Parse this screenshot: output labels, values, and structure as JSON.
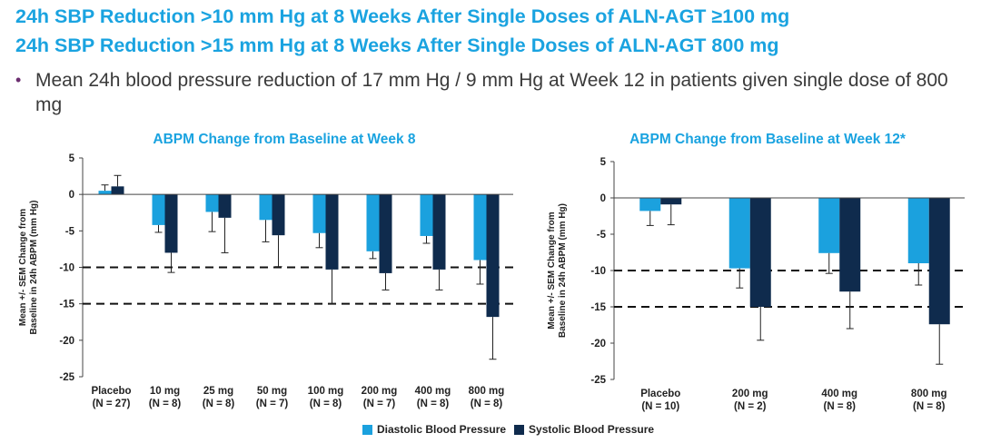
{
  "slide": {
    "headline1": "24h SBP Reduction >10 mm Hg at 8 Weeks After Single Doses of ALN-AGT ≥100 mg",
    "headline2": "24h SBP Reduction >15 mm Hg at 8 Weeks After Single Doses of ALN-AGT 800 mg",
    "bullet": "Mean 24h blood pressure reduction of 17 mm Hg / 9 mm Hg at Week 12 in patients given single dose of 800 mg"
  },
  "colors": {
    "diastolic": "#1ba1de",
    "systolic": "#0f2b4d",
    "title": "#1aa3e0",
    "bullet": "#6b2d6f"
  },
  "legend": {
    "diastolic": "Diastolic Blood Pressure",
    "systolic": "Systolic Blood Pressure"
  },
  "chart_data": [
    {
      "type": "bar",
      "title": "ABPM Change from Baseline at Week 8",
      "ylabel_line1": "Mean +/- SEM Change from",
      "ylabel_line2": "Baseline in 24h ABPM (mm Hg)",
      "ylim": [
        -25,
        5
      ],
      "yticks": [
        5,
        0,
        -5,
        -10,
        -15,
        -20,
        -25
      ],
      "reference_lines": [
        -10,
        -15
      ],
      "categories": [
        "Placebo",
        "10 mg",
        "25 mg",
        "50 mg",
        "100 mg",
        "200 mg",
        "400 mg",
        "800 mg"
      ],
      "category_n": [
        "(N = 27)",
        "(N = 8)",
        "(N = 8)",
        "(N = 7)",
        "(N = 8)",
        "(N = 7)",
        "(N = 8)",
        "(N = 8)"
      ],
      "series": [
        {
          "name": "Diastolic Blood Pressure",
          "values": [
            0.5,
            -4.2,
            -2.4,
            -3.5,
            -5.3,
            -7.8,
            -5.7,
            -9.0
          ],
          "errors": [
            0.8,
            1.0,
            2.7,
            3.0,
            2.0,
            1.0,
            1.0,
            3.3
          ]
        },
        {
          "name": "Systolic Blood Pressure",
          "values": [
            1.1,
            -8.0,
            -3.2,
            -5.6,
            -10.3,
            -10.8,
            -10.3,
            -16.8
          ],
          "errors": [
            1.5,
            2.7,
            4.8,
            4.3,
            4.7,
            2.3,
            2.8,
            5.8
          ]
        }
      ]
    },
    {
      "type": "bar",
      "title": "ABPM Change from Baseline at Week 12*",
      "ylabel_line1": "Mean +/- SEM Change from",
      "ylabel_line2": "Baseline in 24h ABPM (mm Hg)",
      "ylim": [
        -25,
        5
      ],
      "yticks": [
        5,
        0,
        -5,
        -10,
        -15,
        -20,
        -25
      ],
      "reference_lines": [
        -10,
        -15
      ],
      "categories": [
        "Placebo",
        "200 mg",
        "400 mg",
        "800 mg"
      ],
      "category_n": [
        "(N = 10)",
        "(N = 2)",
        "(N = 8)",
        "(N = 8)"
      ],
      "series": [
        {
          "name": "Diastolic Blood Pressure",
          "values": [
            -1.8,
            -9.7,
            -7.6,
            -9.0
          ],
          "errors": [
            2.0,
            2.7,
            2.8,
            3.0
          ]
        },
        {
          "name": "Systolic Blood Pressure",
          "values": [
            -0.9,
            -15.0,
            -12.9,
            -17.4
          ],
          "errors": [
            2.8,
            4.6,
            5.1,
            5.5
          ]
        }
      ]
    }
  ]
}
